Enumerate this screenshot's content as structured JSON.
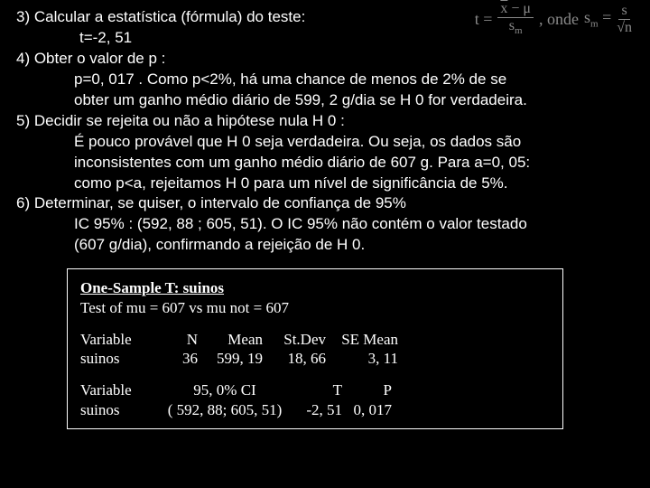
{
  "formula": {
    "t_label": "t =",
    "num1": "x̄ − μ",
    "den1": "sₘ",
    "onde": ", onde",
    "sm_label": "sₘ =",
    "num2": "s",
    "den2": "√n"
  },
  "text": {
    "l1": "3) Calcular a estatística (fórmula) do teste:",
    "l2": "t=-2, 51",
    "l3": "4) Obter o valor de p :",
    "l4": "p=0, 017 . Como p<2%, há uma chance de menos de 2% de se",
    "l5": "obter um ganho médio diário de 599, 2 g/dia se H 0 for verdadeira.",
    "l6": "5) Decidir se rejeita ou não a hipótese nula H 0 :",
    "l7": "É pouco provável que H 0 seja verdadeira. Ou seja, os dados são",
    "l8": "inconsistentes com um ganho médio diário de 607 g. Para a=0, 05:",
    "l9": "como p<a, rejeitamos H 0 para um nível de significância de 5%.",
    "l10": "6) Determinar, se quiser, o intervalo de confiança de 95%",
    "l11": "IC 95% : (592, 88 ; 605, 51). O IC 95% não contém o valor testado",
    "l12": "(607 g/dia), confirmando a rejeição de H 0."
  },
  "box": {
    "title": "One-Sample T: suinos",
    "subtitle": "Test of mu = 607 vs mu not = 607",
    "h_var": "Variable",
    "h_n": "N",
    "h_mean": "Mean",
    "h_sd": "St.Dev",
    "h_se": "SE Mean",
    "r1_var": "suinos",
    "r1_n": "36",
    "r1_mean": "599, 19",
    "r1_sd": "18, 66",
    "r1_se": "3, 11",
    "h2_var": "Variable",
    "h2_ci": "95, 0% CI",
    "h2_t": "T",
    "h2_p": "P",
    "r2_var": "suinos",
    "r2_ci": "(  592, 88;  605, 51)",
    "r2_t": "-2, 51",
    "r2_p": "0, 017"
  },
  "colors": {
    "bg": "#000000",
    "fg": "#ffffff",
    "formula": "#8a8a8a"
  }
}
